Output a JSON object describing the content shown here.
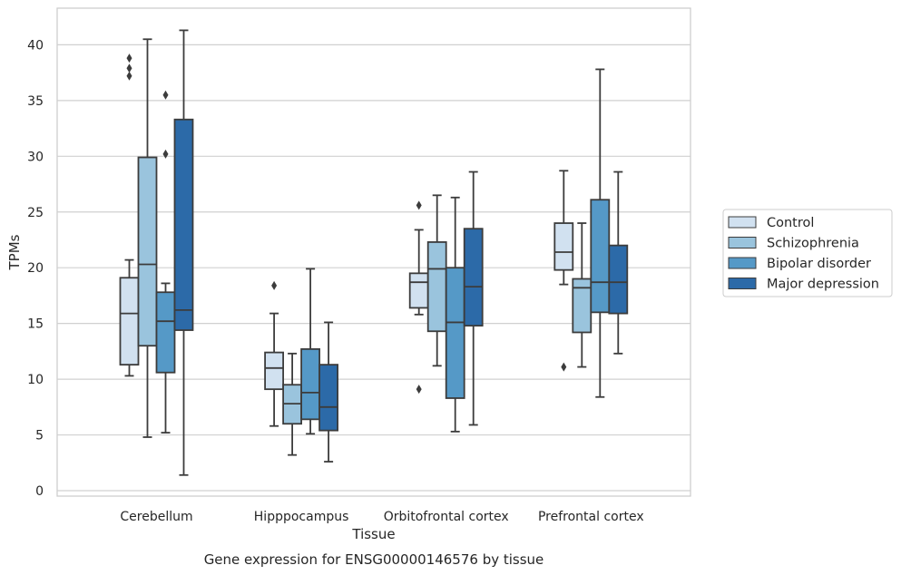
{
  "caption": "Gene expression for ENSG00000146576 by tissue",
  "chart_data": {
    "type": "box",
    "xlabel": "Tissue",
    "ylabel": "TPMs",
    "ylim": [
      -0.6,
      43.3
    ],
    "yticks": [
      0,
      5,
      10,
      15,
      20,
      25,
      30,
      35,
      40
    ],
    "grid": true,
    "legend_position": "right",
    "categories": [
      "Cerebellum",
      "Hipppocampus",
      "Orbitofrontal cortex",
      "Prefrontal cortex"
    ],
    "series": [
      {
        "name": "Control",
        "color": "#d1e1f0",
        "boxes": [
          {
            "whislo": 10.3,
            "q1": 11.3,
            "med": 15.9,
            "q3": 19.1,
            "whishi": 20.7,
            "fliers": [
              37.2,
              37.9,
              38.8
            ]
          },
          {
            "whislo": 5.8,
            "q1": 9.1,
            "med": 11.0,
            "q3": 12.4,
            "whishi": 15.9,
            "fliers": [
              18.4
            ]
          },
          {
            "whislo": 15.8,
            "q1": 16.4,
            "med": 18.7,
            "q3": 19.5,
            "whishi": 23.4,
            "fliers": [
              25.6,
              9.1
            ]
          },
          {
            "whislo": 18.5,
            "q1": 19.8,
            "med": 21.4,
            "q3": 24.0,
            "whishi": 28.7,
            "fliers": [
              11.1
            ]
          }
        ]
      },
      {
        "name": "Schizophrenia",
        "color": "#9ac4dd",
        "boxes": [
          {
            "whislo": 4.8,
            "q1": 13.0,
            "med": 20.3,
            "q3": 29.9,
            "whishi": 40.5,
            "fliers": []
          },
          {
            "whislo": 3.2,
            "q1": 6.0,
            "med": 7.8,
            "q3": 9.5,
            "whishi": 12.3,
            "fliers": []
          },
          {
            "whislo": 11.2,
            "q1": 14.3,
            "med": 19.9,
            "q3": 22.3,
            "whishi": 26.5,
            "fliers": []
          },
          {
            "whislo": 11.1,
            "q1": 14.2,
            "med": 18.2,
            "q3": 19.0,
            "whishi": 24.0,
            "fliers": []
          }
        ]
      },
      {
        "name": "Bipolar disorder",
        "color": "#5599c7",
        "boxes": [
          {
            "whislo": 5.2,
            "q1": 10.6,
            "med": 15.2,
            "q3": 17.8,
            "whishi": 18.6,
            "fliers": [
              30.2,
              35.5
            ]
          },
          {
            "whislo": 5.1,
            "q1": 6.4,
            "med": 8.8,
            "q3": 12.7,
            "whishi": 19.9,
            "fliers": []
          },
          {
            "whislo": 5.3,
            "q1": 8.3,
            "med": 15.1,
            "q3": 20.0,
            "whishi": 26.3,
            "fliers": []
          },
          {
            "whislo": 8.4,
            "q1": 16.0,
            "med": 18.7,
            "q3": 26.1,
            "whishi": 37.8,
            "fliers": []
          }
        ]
      },
      {
        "name": "Major depression",
        "color": "#2c6aa8",
        "boxes": [
          {
            "whislo": 1.4,
            "q1": 14.4,
            "med": 16.2,
            "q3": 33.3,
            "whishi": 41.3,
            "fliers": []
          },
          {
            "whislo": 2.6,
            "q1": 5.4,
            "med": 7.5,
            "q3": 11.3,
            "whishi": 15.1,
            "fliers": []
          },
          {
            "whislo": 5.9,
            "q1": 14.8,
            "med": 18.3,
            "q3": 23.5,
            "whishi": 28.6,
            "fliers": []
          },
          {
            "whislo": 12.3,
            "q1": 15.9,
            "med": 18.7,
            "q3": 22.0,
            "whishi": 28.6,
            "fliers": []
          }
        ]
      }
    ]
  }
}
